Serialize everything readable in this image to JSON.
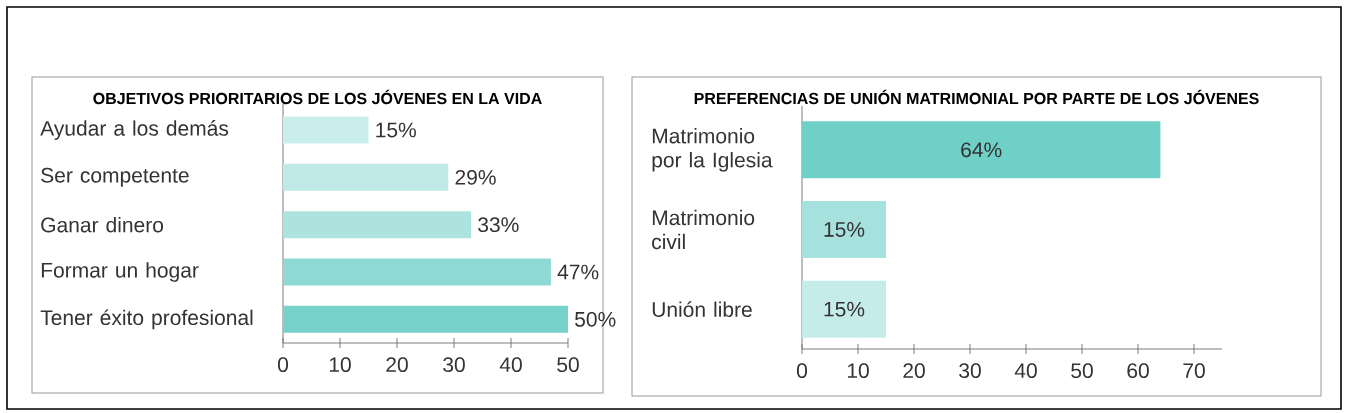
{
  "chart_data": [
    {
      "type": "bar",
      "orientation": "horizontal",
      "title": "OBJETIVOS PRIORITARIOS DE LOS JÓVENES EN LA VIDA",
      "categories": [
        "Ayudar a los demás",
        "Ser competente",
        "Ganar dinero",
        "Formar un hogar",
        "Tener éxito profesional"
      ],
      "values": [
        15,
        29,
        33,
        47,
        50
      ],
      "colors": [
        "#c9eeec",
        "#bfeae7",
        "#ade3df",
        "#8ed9d3",
        "#76d2ca"
      ],
      "value_labels": [
        "15%",
        "29%",
        "33%",
        "47%",
        "50%"
      ],
      "xlim": [
        0,
        50
      ],
      "xticks": [
        0,
        10,
        20,
        30,
        40,
        50
      ]
    },
    {
      "type": "bar",
      "orientation": "horizontal",
      "title": "PREFERENCIAS DE UNIÓN MATRIMONIAL POR PARTE DE LOS JÓVENES",
      "categories": [
        "Matrimonio por la Iglesia",
        "Matrimonio civil",
        "Unión libre"
      ],
      "values": [
        64,
        15,
        15
      ],
      "colors": [
        "#6fd0c7",
        "#a6e1dd",
        "#c6ecea"
      ],
      "value_labels": [
        "64%",
        "15%",
        "15%"
      ],
      "xlim": [
        0,
        75
      ],
      "xticks": [
        0,
        10,
        20,
        30,
        40,
        50,
        60,
        70
      ]
    }
  ]
}
